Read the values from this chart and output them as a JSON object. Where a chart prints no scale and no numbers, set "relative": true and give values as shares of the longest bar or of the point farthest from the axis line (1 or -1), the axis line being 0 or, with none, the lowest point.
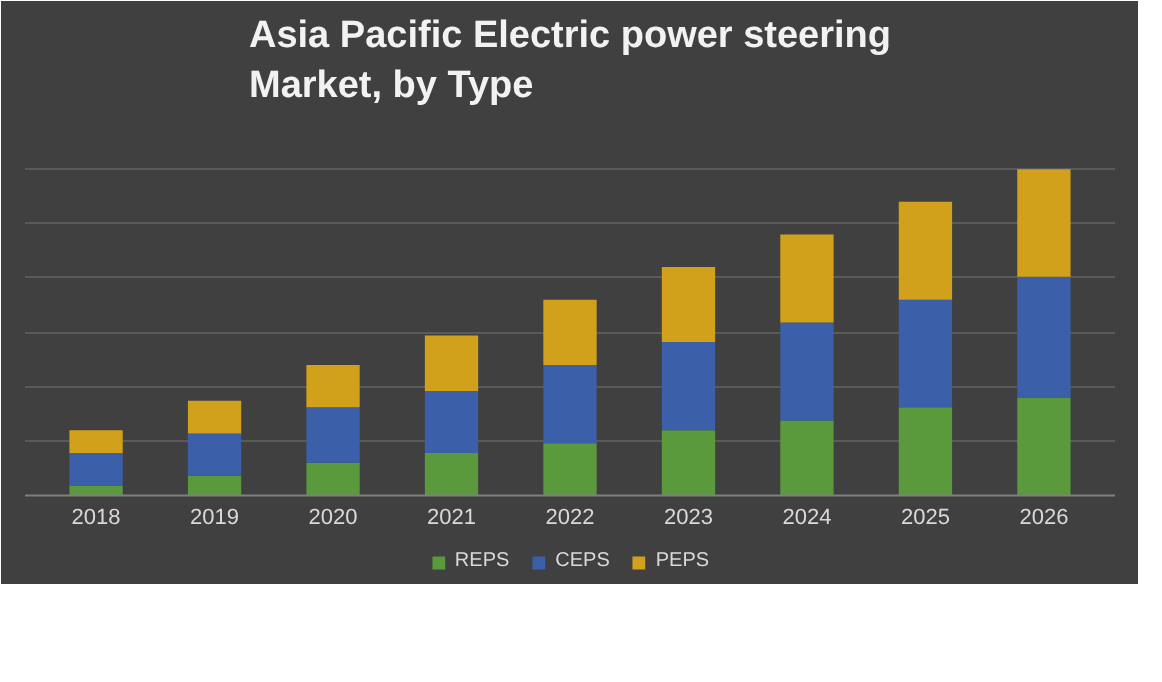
{
  "chart_data": {
    "type": "bar",
    "title": "Asia Pacific Electric power steering\nMarket, by Type",
    "categories": [
      "2018",
      "2019",
      "2020",
      "2021",
      "2022",
      "2023",
      "2024",
      "2025",
      "2026"
    ],
    "relative": true,
    "stacked": true,
    "grid": "y",
    "legend": "bottom",
    "series": [
      {
        "name": "REPS",
        "color": "#5a9a3c",
        "values": [
          0.03,
          0.06,
          0.1,
          0.13,
          0.16,
          0.2,
          0.23,
          0.27,
          0.3
        ]
      },
      {
        "name": "CEPS",
        "color": "#3b5fa8",
        "values": [
          0.1,
          0.13,
          0.17,
          0.19,
          0.24,
          0.27,
          0.3,
          0.33,
          0.37
        ]
      },
      {
        "name": "PEPS",
        "color": "#d2a11c",
        "values": [
          0.07,
          0.1,
          0.13,
          0.17,
          0.2,
          0.23,
          0.27,
          0.3,
          0.33
        ]
      }
    ]
  }
}
